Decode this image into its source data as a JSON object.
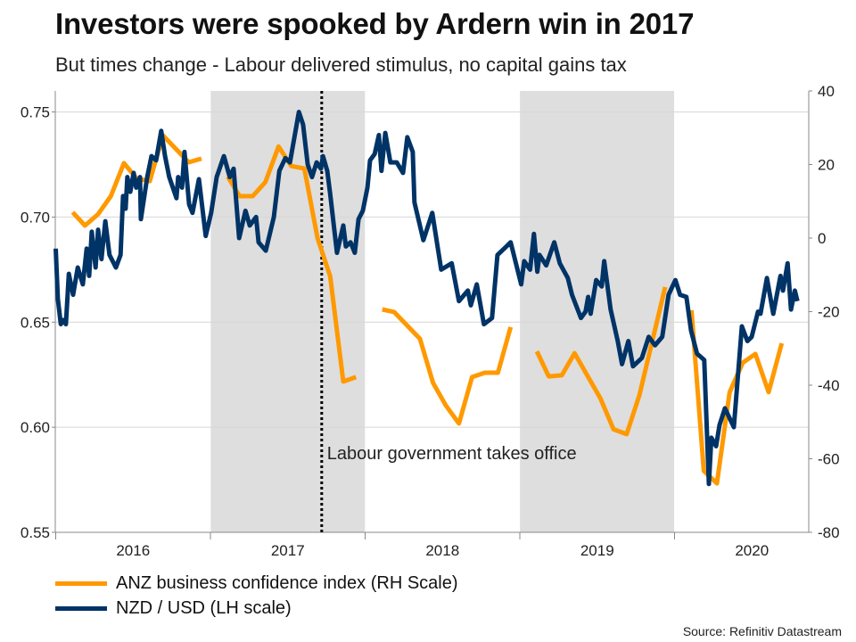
{
  "chart_data": {
    "type": "line",
    "title": "Investors were spooked by Ardern win in 2017",
    "subtitle": "But times change - Labour delivered stimulus, no capital gains tax",
    "x_axis": {
      "type": "date",
      "range": [
        "2016-01-01",
        "2020-11-12"
      ],
      "tick_labels": [
        "2016",
        "2017",
        "2018",
        "2019",
        "2020"
      ]
    },
    "y_axis_left": {
      "range": [
        0.55,
        0.76
      ],
      "tick_labels": [
        "0.55",
        "0.60",
        "0.65",
        "0.70",
        "0.75"
      ],
      "ticks": [
        0.55,
        0.6,
        0.65,
        0.7,
        0.75
      ]
    },
    "y_axis_right": {
      "range": [
        -80,
        40
      ],
      "tick_labels": [
        "-80",
        "-60",
        "-40",
        "-20",
        "0",
        "20",
        "40"
      ],
      "ticks": [
        -80,
        -60,
        -40,
        -20,
        0,
        20,
        40
      ]
    },
    "grid": true,
    "shaded_periods": [
      [
        "2017-01-01",
        "2017-12-31"
      ],
      [
        "2019-01-01",
        "2019-12-31"
      ]
    ],
    "annotation": {
      "date": "2017-09-20",
      "label": "Labour government takes office"
    },
    "legend_position": "bottom-left",
    "series": [
      {
        "name": "ANZ business confidence index (RH Scale)",
        "axis": "right",
        "color": "#FF9900",
        "points": [
          [
            "2016-02",
            7.0
          ],
          [
            "2016-03",
            3.4
          ],
          [
            "2016-04",
            6.5
          ],
          [
            "2016-05",
            11.4
          ],
          [
            "2016-06",
            20.4
          ],
          [
            "2016-07",
            16.2
          ],
          [
            "2016-08",
            15.5
          ],
          [
            "2016-09",
            27.9
          ],
          [
            "2016-11",
            20.6
          ],
          [
            "2016-12",
            21.6
          ],
          [
            "2017-01",
            null
          ],
          [
            "2017-02",
            16.7
          ],
          [
            "2017-03",
            11.4
          ],
          [
            "2017-04",
            11.4
          ],
          [
            "2017-05",
            15.2
          ],
          [
            "2017-06",
            24.9
          ],
          [
            "2017-07",
            19.6
          ],
          [
            "2017-08",
            18.9
          ],
          [
            "2017-09",
            0.0
          ],
          [
            "2017-10",
            -10.4
          ],
          [
            "2017-11",
            -39.0
          ],
          [
            "2017-12",
            -37.8
          ],
          [
            "2018-01",
            null
          ],
          [
            "2018-02",
            -19.4
          ],
          [
            "2018-03",
            -20.1
          ],
          [
            "2018-05",
            -27.4
          ],
          [
            "2018-06",
            -39.4
          ],
          [
            "2018-07",
            -45.5
          ],
          [
            "2018-08",
            -50.4
          ],
          [
            "2018-09",
            -37.8
          ],
          [
            "2018-10",
            -36.6
          ],
          [
            "2018-11",
            -36.6
          ],
          [
            "2018-12",
            -24.2
          ],
          [
            "2019-01",
            null
          ],
          [
            "2019-02",
            -30.8
          ],
          [
            "2019-03",
            -37.6
          ],
          [
            "2019-04",
            -37.3
          ],
          [
            "2019-05",
            -31.3
          ],
          [
            "2019-07",
            -43.6
          ],
          [
            "2019-08",
            -52.0
          ],
          [
            "2019-09",
            -53.3
          ],
          [
            "2019-10",
            -42.7
          ],
          [
            "2019-12",
            -13.3
          ],
          [
            "2020-01",
            null
          ],
          [
            "2020-02",
            -19.6
          ],
          [
            "2020-03",
            -63.3
          ],
          [
            "2020-04",
            -66.7
          ],
          [
            "2020-05",
            -41.9
          ],
          [
            "2020-06",
            -33.9
          ],
          [
            "2020-07",
            -31.5
          ],
          [
            "2020-08",
            -41.9
          ],
          [
            "2020-09",
            -28.6
          ]
        ]
      },
      {
        "name": "NZD / USD (LH scale)",
        "axis": "left",
        "color": "#003366",
        "points": [
          [
            "2016-01-01",
            0.685
          ],
          [
            "2016-01-06",
            0.661
          ],
          [
            "2016-01-13",
            0.649
          ],
          [
            "2016-01-19",
            0.651
          ],
          [
            "2016-01-25",
            0.649
          ],
          [
            "2016-02-01",
            0.673
          ],
          [
            "2016-02-11",
            0.663
          ],
          [
            "2016-02-22",
            0.676
          ],
          [
            "2016-03-05",
            0.668
          ],
          [
            "2016-03-14",
            0.685
          ],
          [
            "2016-03-20",
            0.672
          ],
          [
            "2016-03-26",
            0.693
          ],
          [
            "2016-04-04",
            0.676
          ],
          [
            "2016-04-10",
            0.694
          ],
          [
            "2016-04-18",
            0.68
          ],
          [
            "2016-04-27",
            0.698
          ],
          [
            "2016-05-07",
            0.682
          ],
          [
            "2016-05-22",
            0.676
          ],
          [
            "2016-06-02",
            0.682
          ],
          [
            "2016-06-08",
            0.71
          ],
          [
            "2016-06-14",
            0.704
          ],
          [
            "2016-06-18",
            0.719
          ],
          [
            "2016-06-25",
            0.712
          ],
          [
            "2016-07-03",
            0.721
          ],
          [
            "2016-07-09",
            0.714
          ],
          [
            "2016-07-18",
            0.719
          ],
          [
            "2016-07-20",
            0.699
          ],
          [
            "2016-08-04",
            0.719
          ],
          [
            "2016-08-14",
            0.729
          ],
          [
            "2016-08-25",
            0.727
          ],
          [
            "2016-09-06",
            0.741
          ],
          [
            "2016-09-15",
            0.729
          ],
          [
            "2016-09-25",
            0.719
          ],
          [
            "2016-10-12",
            0.709
          ],
          [
            "2016-10-16",
            0.719
          ],
          [
            "2016-10-25",
            0.714
          ],
          [
            "2016-10-31",
            0.731
          ],
          [
            "2016-11-11",
            0.706
          ],
          [
            "2016-11-19",
            0.702
          ],
          [
            "2016-12-04",
            0.718
          ],
          [
            "2016-12-20",
            0.691
          ],
          [
            "2017-01-02",
            0.702
          ],
          [
            "2017-01-15",
            0.719
          ],
          [
            "2017-02-01",
            0.729
          ],
          [
            "2017-02-15",
            0.719
          ],
          [
            "2017-02-24",
            0.723
          ],
          [
            "2017-03-09",
            0.69
          ],
          [
            "2017-03-24",
            0.703
          ],
          [
            "2017-04-03",
            0.696
          ],
          [
            "2017-04-18",
            0.7
          ],
          [
            "2017-04-24",
            0.688
          ],
          [
            "2017-05-11",
            0.684
          ],
          [
            "2017-05-30",
            0.7
          ],
          [
            "2017-06-12",
            0.722
          ],
          [
            "2017-06-26",
            0.728
          ],
          [
            "2017-07-07",
            0.726
          ],
          [
            "2017-07-28",
            0.75
          ],
          [
            "2017-08-07",
            0.744
          ],
          [
            "2017-08-18",
            0.725
          ],
          [
            "2017-08-28",
            0.719
          ],
          [
            "2017-09-08",
            0.726
          ],
          [
            "2017-09-18",
            0.723
          ],
          [
            "2017-09-23",
            0.729
          ],
          [
            "2017-10-03",
            0.722
          ],
          [
            "2017-10-10",
            0.711
          ],
          [
            "2017-10-26",
            0.683
          ],
          [
            "2017-11-10",
            0.696
          ],
          [
            "2017-11-16",
            0.686
          ],
          [
            "2017-11-27",
            0.688
          ],
          [
            "2017-12-07",
            0.683
          ],
          [
            "2017-12-16",
            0.699
          ],
          [
            "2017-12-26",
            0.703
          ],
          [
            "2018-01-06",
            0.714
          ],
          [
            "2018-01-12",
            0.727
          ],
          [
            "2018-01-23",
            0.73
          ],
          [
            "2018-02-02",
            0.739
          ],
          [
            "2018-02-08",
            0.722
          ],
          [
            "2018-02-17",
            0.74
          ],
          [
            "2018-03-01",
            0.726
          ],
          [
            "2018-03-16",
            0.726
          ],
          [
            "2018-03-31",
            0.721
          ],
          [
            "2018-04-10",
            0.738
          ],
          [
            "2018-04-23",
            0.731
          ],
          [
            "2018-04-27",
            0.707
          ],
          [
            "2018-05-18",
            0.689
          ],
          [
            "2018-06-08",
            0.702
          ],
          [
            "2018-06-29",
            0.675
          ],
          [
            "2018-07-24",
            0.678
          ],
          [
            "2018-08-10",
            0.66
          ],
          [
            "2018-08-31",
            0.665
          ],
          [
            "2018-09-07",
            0.658
          ],
          [
            "2018-09-21",
            0.668
          ],
          [
            "2018-10-08",
            0.649
          ],
          [
            "2018-10-27",
            0.652
          ],
          [
            "2018-11-09",
            0.682
          ],
          [
            "2018-11-30",
            0.686
          ],
          [
            "2018-12-10",
            0.688
          ],
          [
            "2019-01-04",
            0.668
          ],
          [
            "2019-01-11",
            0.679
          ],
          [
            "2019-01-25",
            0.675
          ],
          [
            "2019-02-03",
            0.692
          ],
          [
            "2019-02-11",
            0.674
          ],
          [
            "2019-02-16",
            0.682
          ],
          [
            "2019-03-04",
            0.677
          ],
          [
            "2019-03-23",
            0.688
          ],
          [
            "2019-04-05",
            0.678
          ],
          [
            "2019-04-24",
            0.671
          ],
          [
            "2019-05-04",
            0.663
          ],
          [
            "2019-05-25",
            0.652
          ],
          [
            "2019-06-05",
            0.655
          ],
          [
            "2019-06-11",
            0.662
          ],
          [
            "2019-06-17",
            0.654
          ],
          [
            "2019-06-30",
            0.67
          ],
          [
            "2019-07-13",
            0.667
          ],
          [
            "2019-07-19",
            0.679
          ],
          [
            "2019-08-03",
            0.656
          ],
          [
            "2019-08-20",
            0.641
          ],
          [
            "2019-08-30",
            0.63
          ],
          [
            "2019-09-14",
            0.641
          ],
          [
            "2019-09-25",
            0.629
          ],
          [
            "2019-10-16",
            0.633
          ],
          [
            "2019-11-01",
            0.643
          ],
          [
            "2019-11-16",
            0.639
          ],
          [
            "2019-12-03",
            0.643
          ],
          [
            "2019-12-18",
            0.663
          ],
          [
            "2020-01-03",
            0.67
          ],
          [
            "2020-01-14",
            0.663
          ],
          [
            "2020-01-29",
            0.662
          ],
          [
            "2020-02-09",
            0.646
          ],
          [
            "2020-02-23",
            0.635
          ],
          [
            "2020-03-11",
            0.632
          ],
          [
            "2020-03-22",
            0.573
          ],
          [
            "2020-03-28",
            0.595
          ],
          [
            "2020-04-08",
            0.591
          ],
          [
            "2020-04-16",
            0.601
          ],
          [
            "2020-04-29",
            0.609
          ],
          [
            "2020-05-20",
            0.6
          ],
          [
            "2020-06-08",
            0.648
          ],
          [
            "2020-06-21",
            0.641
          ],
          [
            "2020-07-01",
            0.643
          ],
          [
            "2020-07-16",
            0.655
          ],
          [
            "2020-07-22",
            0.654
          ],
          [
            "2020-08-06",
            0.671
          ],
          [
            "2020-08-21",
            0.654
          ],
          [
            "2020-09-07",
            0.672
          ],
          [
            "2020-09-13",
            0.665
          ],
          [
            "2020-09-24",
            0.678
          ],
          [
            "2020-10-02",
            0.656
          ],
          [
            "2020-10-11",
            0.665
          ],
          [
            "2020-10-17",
            0.66
          ]
        ]
      }
    ]
  },
  "source": "Source: Refinitiv Datastream"
}
